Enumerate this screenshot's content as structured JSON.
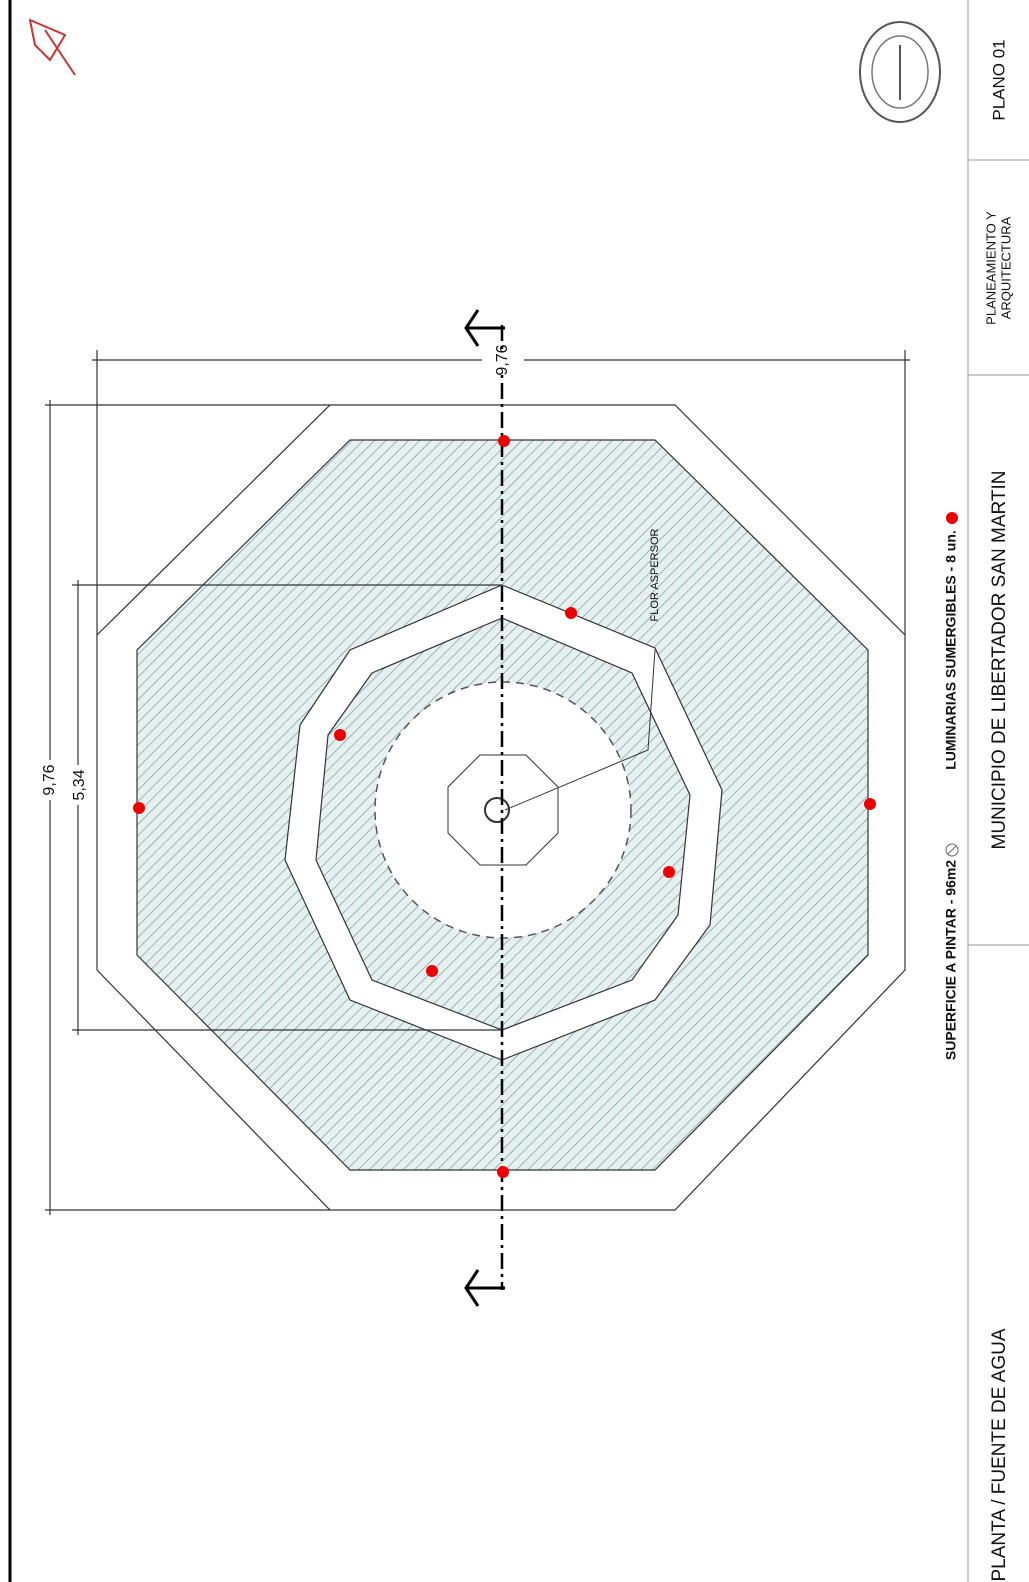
{
  "dimensions": {
    "overall_width": "9,76",
    "overall_height": "9,76",
    "inner_height": "5,34"
  },
  "annotations": {
    "sprinkler": "FLOR ASPERSOR"
  },
  "legend": {
    "paint_surface": "SUPERFICIE A PINTAR - 96m2",
    "lights": "LUMINARIAS SUMERGIBLES - 8 un."
  },
  "title_block": {
    "drawing_title": "PLANTA / FUENTE DE AGUA",
    "municipality": "MUNICIPIO DE LIBERTADOR SAN MARTIN",
    "department_line1": "PLANEAMIENTO Y",
    "department_line2": "ARQUITECTURA",
    "sheet": "PLANO 01"
  }
}
